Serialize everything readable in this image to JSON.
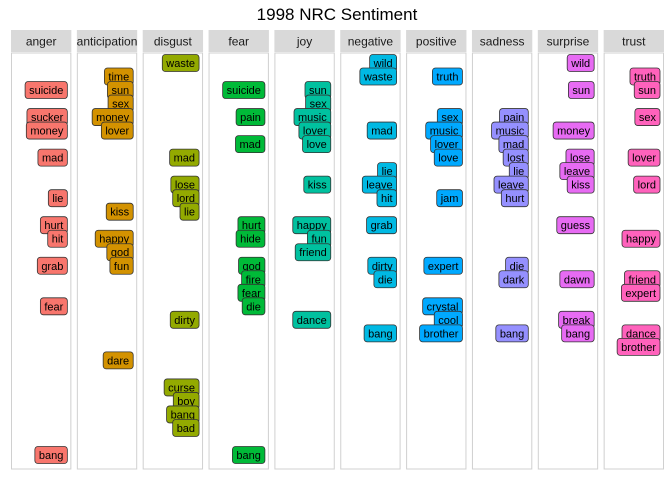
{
  "chart_data": {
    "type": "table",
    "title": "1998 NRC Sentiment",
    "y_order": "top-to-bottom",
    "ylim": [
      1,
      30
    ],
    "panels": [
      {
        "name": "anger",
        "color": "#f8766d",
        "words": [
          {
            "label": "suicide",
            "y": 3
          },
          {
            "label": "sucker",
            "y": 5
          },
          {
            "label": "money",
            "y": 6
          },
          {
            "label": "mad",
            "y": 8
          },
          {
            "label": "lie",
            "y": 11
          },
          {
            "label": "hurt",
            "y": 13
          },
          {
            "label": "hit",
            "y": 14
          },
          {
            "label": "grab",
            "y": 16
          },
          {
            "label": "fear",
            "y": 19
          },
          {
            "label": "bang",
            "y": 30
          }
        ]
      },
      {
        "name": "anticipation",
        "color": "#d39200",
        "words": [
          {
            "label": "time",
            "y": 2
          },
          {
            "label": "sun",
            "y": 3
          },
          {
            "label": "sex",
            "y": 4
          },
          {
            "label": "money",
            "y": 5
          },
          {
            "label": "lover",
            "y": 6
          },
          {
            "label": "kiss",
            "y": 12
          },
          {
            "label": "happy",
            "y": 14
          },
          {
            "label": "god",
            "y": 15
          },
          {
            "label": "fun",
            "y": 16
          },
          {
            "label": "dare",
            "y": 23
          }
        ]
      },
      {
        "name": "disgust",
        "color": "#93aa00",
        "words": [
          {
            "label": "waste",
            "y": 1
          },
          {
            "label": "mad",
            "y": 8
          },
          {
            "label": "lose",
            "y": 10
          },
          {
            "label": "lord",
            "y": 11
          },
          {
            "label": "lie",
            "y": 12
          },
          {
            "label": "dirty",
            "y": 20
          },
          {
            "label": "curse",
            "y": 25
          },
          {
            "label": "boy",
            "y": 26
          },
          {
            "label": "bang",
            "y": 27
          },
          {
            "label": "bad",
            "y": 28
          }
        ]
      },
      {
        "name": "fear",
        "color": "#00ba38",
        "words": [
          {
            "label": "suicide",
            "y": 3
          },
          {
            "label": "pain",
            "y": 5
          },
          {
            "label": "mad",
            "y": 7
          },
          {
            "label": "hurt",
            "y": 13
          },
          {
            "label": "hide",
            "y": 14
          },
          {
            "label": "god",
            "y": 16
          },
          {
            "label": "fire",
            "y": 17
          },
          {
            "label": "fear",
            "y": 18
          },
          {
            "label": "die",
            "y": 19
          },
          {
            "label": "bang",
            "y": 30
          }
        ]
      },
      {
        "name": "joy",
        "color": "#00c19f",
        "words": [
          {
            "label": "sun",
            "y": 3
          },
          {
            "label": "sex",
            "y": 4
          },
          {
            "label": "music",
            "y": 5
          },
          {
            "label": "lover",
            "y": 6
          },
          {
            "label": "love",
            "y": 7
          },
          {
            "label": "kiss",
            "y": 10
          },
          {
            "label": "happy",
            "y": 13
          },
          {
            "label": "fun",
            "y": 14
          },
          {
            "label": "friend",
            "y": 15
          },
          {
            "label": "dance",
            "y": 20
          }
        ]
      },
      {
        "name": "negative",
        "color": "#00b9e3",
        "words": [
          {
            "label": "wild",
            "y": 1
          },
          {
            "label": "waste",
            "y": 2
          },
          {
            "label": "mad",
            "y": 6
          },
          {
            "label": "lie",
            "y": 9
          },
          {
            "label": "leave",
            "y": 10
          },
          {
            "label": "hit",
            "y": 11
          },
          {
            "label": "grab",
            "y": 13
          },
          {
            "label": "dirty",
            "y": 16
          },
          {
            "label": "die",
            "y": 17
          },
          {
            "label": "bang",
            "y": 21
          }
        ]
      },
      {
        "name": "positive",
        "color": "#00a9ff",
        "words": [
          {
            "label": "truth",
            "y": 2
          },
          {
            "label": "sex",
            "y": 5
          },
          {
            "label": "music",
            "y": 6
          },
          {
            "label": "lover",
            "y": 7
          },
          {
            "label": "love",
            "y": 8
          },
          {
            "label": "jam",
            "y": 11
          },
          {
            "label": "expert",
            "y": 16
          },
          {
            "label": "crystal",
            "y": 19
          },
          {
            "label": "cool",
            "y": 20
          },
          {
            "label": "brother",
            "y": 21
          }
        ]
      },
      {
        "name": "sadness",
        "color": "#9590ff",
        "words": [
          {
            "label": "pain",
            "y": 5
          },
          {
            "label": "music",
            "y": 6
          },
          {
            "label": "mad",
            "y": 7
          },
          {
            "label": "lost",
            "y": 8
          },
          {
            "label": "lie",
            "y": 9
          },
          {
            "label": "leave",
            "y": 10
          },
          {
            "label": "hurt",
            "y": 11
          },
          {
            "label": "die",
            "y": 16
          },
          {
            "label": "dark",
            "y": 17
          },
          {
            "label": "bang",
            "y": 21
          }
        ]
      },
      {
        "name": "surprise",
        "color": "#e76bf3",
        "words": [
          {
            "label": "wild",
            "y": 1
          },
          {
            "label": "sun",
            "y": 3
          },
          {
            "label": "money",
            "y": 6
          },
          {
            "label": "lose",
            "y": 8
          },
          {
            "label": "leave",
            "y": 9
          },
          {
            "label": "kiss",
            "y": 10
          },
          {
            "label": "guess",
            "y": 13
          },
          {
            "label": "dawn",
            "y": 17
          },
          {
            "label": "break",
            "y": 20
          },
          {
            "label": "bang",
            "y": 21
          }
        ]
      },
      {
        "name": "trust",
        "color": "#ff62bc",
        "words": [
          {
            "label": "truth",
            "y": 2
          },
          {
            "label": "sun",
            "y": 3
          },
          {
            "label": "sex",
            "y": 5
          },
          {
            "label": "lover",
            "y": 8
          },
          {
            "label": "lord",
            "y": 10
          },
          {
            "label": "happy",
            "y": 14
          },
          {
            "label": "friend",
            "y": 17
          },
          {
            "label": "expert",
            "y": 18
          },
          {
            "label": "dance",
            "y": 21
          },
          {
            "label": "brother",
            "y": 22
          }
        ]
      }
    ]
  }
}
